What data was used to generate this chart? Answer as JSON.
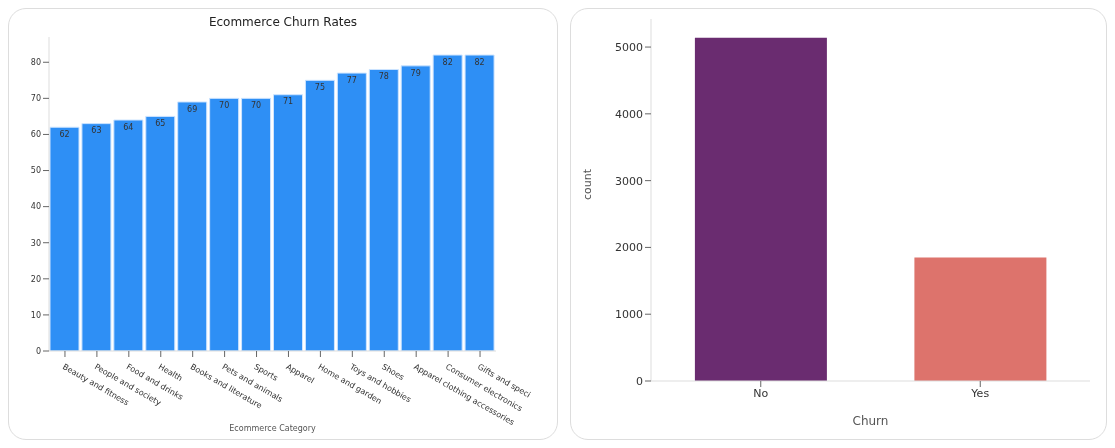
{
  "chart_data": [
    {
      "type": "bar",
      "title": "Ecommerce Churn Rates",
      "xlabel": "Ecommerce Category",
      "categories": [
        "Beauty and fitness",
        "People and society",
        "Food and drinks",
        "Health",
        "Books and literature",
        "Pets and animals",
        "Sports",
        "Apparel",
        "Home and garden",
        "Toys and hobbies",
        "Shoes",
        "Apparel clothing accessories",
        "Consumer electronics",
        "Gifts and speci"
      ],
      "values": [
        62,
        63,
        64,
        65,
        69,
        70,
        70,
        71,
        75,
        77,
        78,
        79,
        82,
        82
      ],
      "color": "#2e8ff5",
      "ylim": [
        0,
        87
      ],
      "yticks": [
        0,
        10,
        20,
        30,
        40,
        50,
        60,
        70,
        80
      ],
      "data_labels": true,
      "grid": false,
      "legend": false
    },
    {
      "type": "bar",
      "xlabel": "Churn",
      "ylabel": "count",
      "categories": [
        "No",
        "Yes"
      ],
      "values": [
        5140,
        1850
      ],
      "colors": [
        "#6a2c70",
        "#dd736c"
      ],
      "ylim": [
        0,
        5420
      ],
      "yticks": [
        0,
        1000,
        2000,
        3000,
        4000,
        5000
      ],
      "grid": false,
      "legend": false
    }
  ]
}
